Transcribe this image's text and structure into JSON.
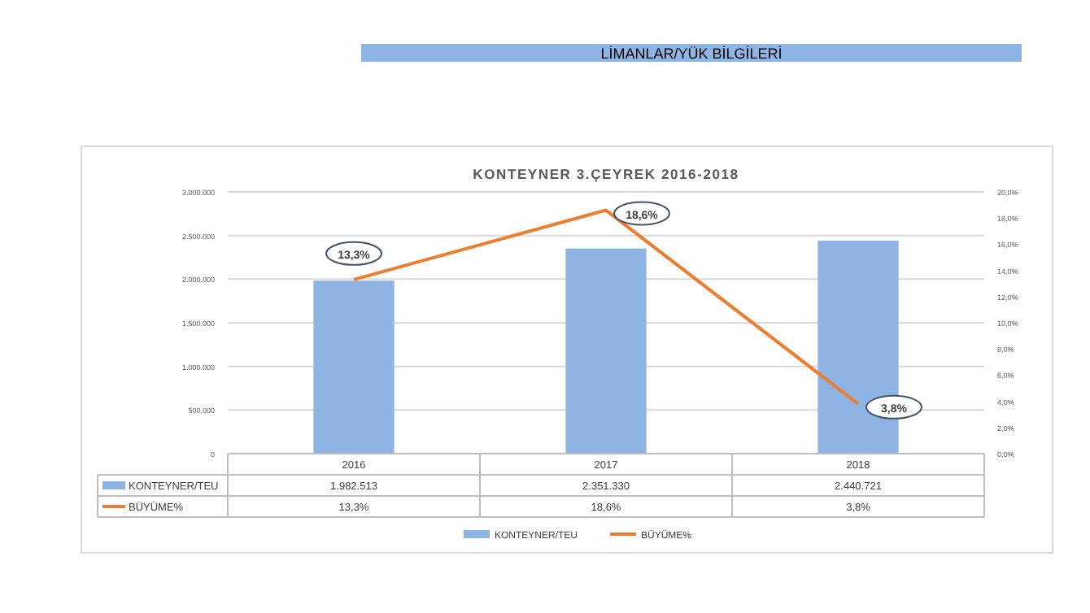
{
  "chart_data": {
    "type": "bar",
    "title": "KONTEYNER 3.ÇEYREK 2016-2018",
    "annotations": [
      "LİMANLAR/YÜK BİLGİLERİ"
    ],
    "categories": [
      "2016",
      "2017",
      "2018"
    ],
    "series": [
      {
        "name": "KONTEYNER/TEU",
        "color": "#8db4e2",
        "values": [
          1982513,
          2351330,
          2440721
        ],
        "value_labels": [
          "1.982.513",
          "2.351.330",
          "2.440.721"
        ]
      },
      {
        "name": "BÜYÜME%",
        "type": "line",
        "axis": "y2",
        "color": "#ed7d31",
        "values": [
          13.3,
          18.6,
          3.8
        ],
        "value_labels": [
          "13,3%",
          "18,6%",
          "3,8%"
        ]
      }
    ],
    "ylim": [
      0,
      3000000
    ],
    "yticks": [
      {
        "value": 0,
        "label": "0"
      },
      {
        "value": 500000,
        "label": "500.000"
      },
      {
        "value": 1000000,
        "label": "1.000.000"
      },
      {
        "value": 1500000,
        "label": "1.500.000"
      },
      {
        "value": 2000000,
        "label": "2.000.000"
      },
      {
        "value": 2500000,
        "label": "2.500.000"
      },
      {
        "value": 3000000,
        "label": "3.000.000"
      }
    ],
    "y2lim": [
      0,
      20
    ],
    "y2ticks": [
      {
        "value": 0,
        "label": "0,0%"
      },
      {
        "value": 2,
        "label": "2,0%"
      },
      {
        "value": 4,
        "label": "4,0%"
      },
      {
        "value": 6,
        "label": "6,0%"
      },
      {
        "value": 8,
        "label": "8,0%"
      },
      {
        "value": 10,
        "label": "10,0%"
      },
      {
        "value": 12,
        "label": "12,0%"
      },
      {
        "value": 14,
        "label": "14,0%"
      },
      {
        "value": 16,
        "label": "16,0%"
      },
      {
        "value": 18,
        "label": "18,0%"
      },
      {
        "value": 20,
        "label": "20,0%"
      }
    ],
    "grid": "y",
    "legend": "bottom",
    "marker": "none",
    "line_style": "solid"
  }
}
